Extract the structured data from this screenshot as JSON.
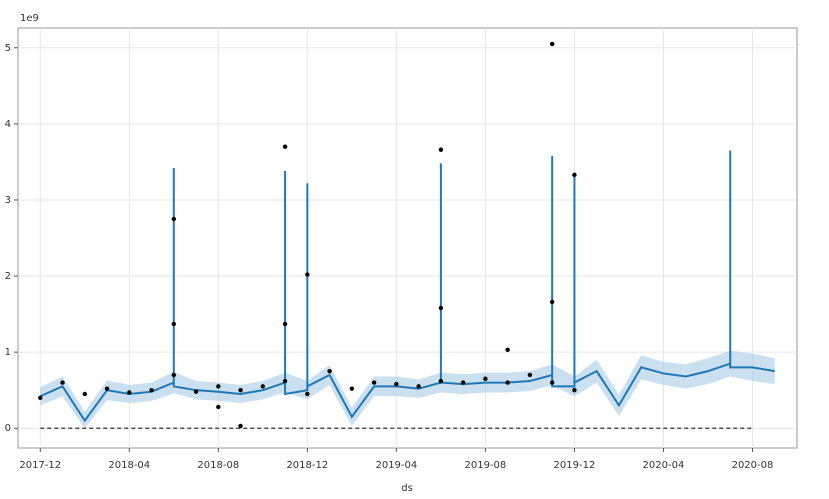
{
  "chart_data": {
    "type": "line",
    "x_label": "ds",
    "y_offset_label": "1e9",
    "xlim": [
      "2017-11",
      "2020-10"
    ],
    "xticks": [
      "2017-12",
      "2018-04",
      "2018-08",
      "2018-12",
      "2019-04",
      "2019-08",
      "2019-12",
      "2020-04",
      "2020-08"
    ],
    "ylim": [
      -0.26,
      5.26
    ],
    "yticks": [
      0,
      1,
      2,
      3,
      4,
      5
    ],
    "grid": true,
    "band": {
      "color": "#a6cbe6",
      "x": [
        "2017-12",
        "2018-01",
        "2018-02",
        "2018-03",
        "2018-04",
        "2018-05",
        "2018-06",
        "2018-07",
        "2018-08",
        "2018-09",
        "2018-10",
        "2018-11",
        "2018-12",
        "2019-01",
        "2019-02",
        "2019-03",
        "2019-04",
        "2019-05",
        "2019-06",
        "2019-07",
        "2019-08",
        "2019-09",
        "2019-10",
        "2019-11",
        "2019-12",
        "2020-01",
        "2020-02",
        "2020-03",
        "2020-04",
        "2020-05",
        "2020-06",
        "2020-07",
        "2020-08",
        "2020-09"
      ],
      "lower": [
        0.3,
        0.42,
        0.0,
        0.37,
        0.33,
        0.36,
        0.46,
        0.38,
        0.36,
        0.33,
        0.38,
        0.47,
        0.38,
        0.57,
        0.03,
        0.42,
        0.42,
        0.4,
        0.47,
        0.45,
        0.47,
        0.47,
        0.49,
        0.56,
        0.42,
        0.6,
        0.16,
        0.64,
        0.57,
        0.52,
        0.58,
        0.68,
        0.62,
        0.58
      ],
      "upper": [
        0.54,
        0.68,
        0.22,
        0.63,
        0.57,
        0.6,
        0.74,
        0.62,
        0.6,
        0.57,
        0.62,
        0.73,
        0.62,
        0.83,
        0.27,
        0.68,
        0.68,
        0.64,
        0.73,
        0.71,
        0.73,
        0.73,
        0.75,
        0.84,
        0.68,
        0.9,
        0.44,
        0.96,
        0.87,
        0.84,
        0.92,
        1.02,
        0.98,
        0.92
      ]
    },
    "series": [
      {
        "style": "line",
        "color": "#1f77b4",
        "x": [
          "2017-12",
          "2018-01",
          "2018-02",
          "2018-03",
          "2018-04",
          "2018-05",
          "2018-06",
          "2018-06",
          "2018-06",
          "2018-07",
          "2018-08",
          "2018-09",
          "2018-10",
          "2018-11",
          "2018-11",
          "2018-11",
          "2018-12",
          "2018-12",
          "2018-12",
          "2019-01",
          "2019-02",
          "2019-03",
          "2019-04",
          "2019-05",
          "2019-06",
          "2019-06",
          "2019-06",
          "2019-07",
          "2019-08",
          "2019-09",
          "2019-10",
          "2019-11",
          "2019-11",
          "2019-11",
          "2019-12",
          "2019-12",
          "2019-12",
          "2020-01",
          "2020-02",
          "2020-03",
          "2020-04",
          "2020-05",
          "2020-06",
          "2020-07",
          "2020-07",
          "2020-07",
          "2020-08",
          "2020-09"
        ],
        "values": [
          0.42,
          0.55,
          0.1,
          0.5,
          0.45,
          0.48,
          0.6,
          3.42,
          0.55,
          0.5,
          0.48,
          0.45,
          0.5,
          0.6,
          3.38,
          0.45,
          0.5,
          3.22,
          0.55,
          0.7,
          0.15,
          0.55,
          0.55,
          0.52,
          0.6,
          3.48,
          0.6,
          0.58,
          0.6,
          0.6,
          0.62,
          0.7,
          3.58,
          0.55,
          0.55,
          3.35,
          0.6,
          0.75,
          0.3,
          0.8,
          0.72,
          0.68,
          0.75,
          0.85,
          3.65,
          0.8,
          0.8,
          0.75
        ]
      },
      {
        "style": "dashed",
        "color": "#333333",
        "x": [
          "2017-12",
          "2020-08"
        ],
        "values": [
          0,
          0
        ]
      },
      {
        "style": "points",
        "color": "#000000",
        "x": [
          "2017-12",
          "2018-01",
          "2018-02",
          "2018-03",
          "2018-04",
          "2018-05",
          "2018-06",
          "2018-06",
          "2018-06",
          "2018-07",
          "2018-08",
          "2018-08",
          "2018-09",
          "2018-09",
          "2018-10",
          "2018-11",
          "2018-11",
          "2018-11",
          "2018-12",
          "2018-12",
          "2019-01",
          "2019-02",
          "2019-03",
          "2019-04",
          "2019-05",
          "2019-06",
          "2019-06",
          "2019-06",
          "2019-07",
          "2019-08",
          "2019-09",
          "2019-09",
          "2019-10",
          "2019-11",
          "2019-11",
          "2019-11",
          "2019-12",
          "2019-12"
        ],
        "values": [
          0.4,
          0.6,
          0.45,
          0.52,
          0.47,
          0.5,
          0.7,
          1.37,
          2.75,
          0.48,
          0.28,
          0.55,
          0.03,
          0.5,
          0.55,
          0.62,
          3.7,
          1.37,
          2.02,
          0.45,
          0.75,
          0.52,
          0.6,
          0.58,
          0.55,
          0.62,
          1.58,
          3.66,
          0.6,
          0.65,
          1.03,
          0.6,
          0.7,
          1.66,
          5.05,
          0.6,
          3.33,
          0.5
        ]
      }
    ]
  }
}
